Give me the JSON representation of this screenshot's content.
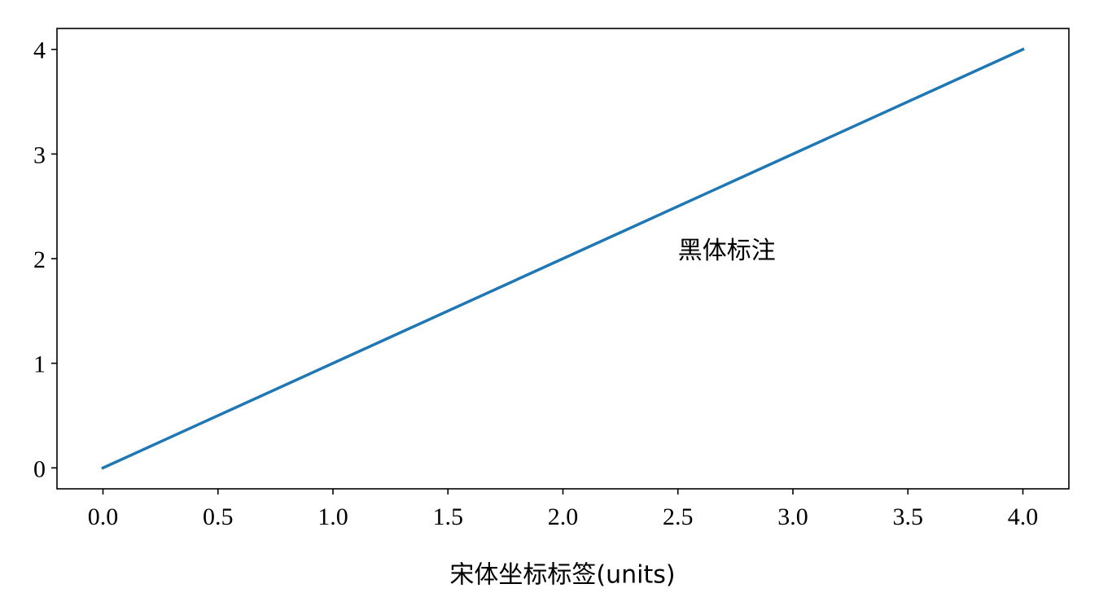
{
  "chart_data": {
    "type": "line",
    "x": [
      0,
      1,
      2,
      3,
      4
    ],
    "series": [
      {
        "color": "#1f77b4",
        "values": [
          0,
          1,
          2,
          3,
          4
        ]
      }
    ],
    "xlabel": "宋体坐标标签(units)",
    "xlim": [
      -0.2,
      4.2
    ],
    "ylim": [
      -0.2,
      4.2
    ],
    "xticks": [
      {
        "value": 0,
        "label": "0.0"
      },
      {
        "value": 0.5,
        "label": "0.5"
      },
      {
        "value": 1,
        "label": "1.0"
      },
      {
        "value": 1.5,
        "label": "1.5"
      },
      {
        "value": 2,
        "label": "2.0"
      },
      {
        "value": 2.5,
        "label": "2.5"
      },
      {
        "value": 3,
        "label": "3.0"
      },
      {
        "value": 3.5,
        "label": "3.5"
      },
      {
        "value": 4,
        "label": "4.0"
      }
    ],
    "yticks": [
      0,
      1,
      2,
      3,
      4
    ],
    "annotations": [
      {
        "text": "黑体标注",
        "x": 2.5,
        "y": 2
      }
    ],
    "grid": false
  }
}
